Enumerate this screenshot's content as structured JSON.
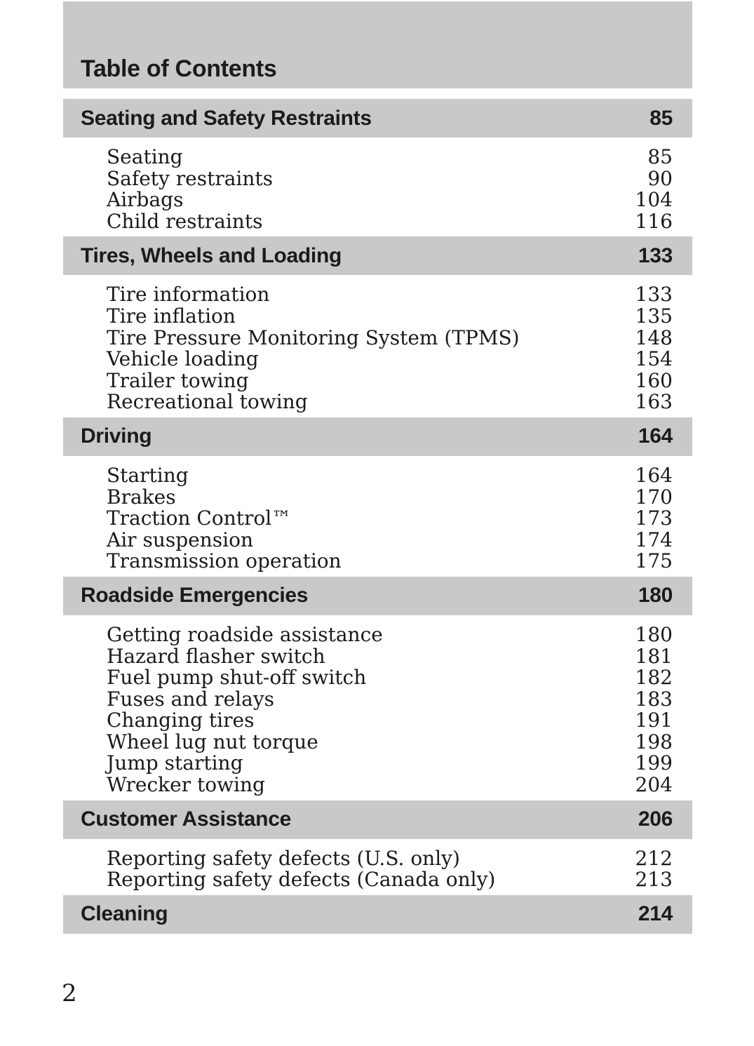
{
  "page": {
    "header_title": "Table of Contents",
    "footer_page_number": "2"
  },
  "colors": {
    "bar_background": "#c9c9c9",
    "heading_text": "#1b1b1b",
    "entry_text": "#1a1a1a",
    "page_background": "#ffffff"
  },
  "sections": [
    {
      "title": "Seating and Safety Restraints",
      "page": "85",
      "entries": [
        {
          "label": "Seating",
          "page": "85"
        },
        {
          "label": "Safety restraints",
          "page": "90"
        },
        {
          "label": "Airbags",
          "page": "104"
        },
        {
          "label": "Child restraints",
          "page": "116"
        }
      ]
    },
    {
      "title": "Tires, Wheels and Loading",
      "page": "133",
      "entries": [
        {
          "label": "Tire information",
          "page": "133"
        },
        {
          "label": "Tire inflation",
          "page": "135"
        },
        {
          "label": "Tire Pressure Monitoring System (TPMS)",
          "page": "148"
        },
        {
          "label": "Vehicle loading",
          "page": "154"
        },
        {
          "label": "Trailer towing",
          "page": "160"
        },
        {
          "label": "Recreational towing",
          "page": "163"
        }
      ]
    },
    {
      "title": "Driving",
      "page": "164",
      "entries": [
        {
          "label": "Starting",
          "page": "164"
        },
        {
          "label": "Brakes",
          "page": "170"
        },
        {
          "label": "Traction Control™",
          "page": "173"
        },
        {
          "label": "Air suspension",
          "page": "174"
        },
        {
          "label": "Transmission operation",
          "page": "175"
        }
      ]
    },
    {
      "title": "Roadside Emergencies",
      "page": "180",
      "entries": [
        {
          "label": "Getting roadside assistance",
          "page": "180"
        },
        {
          "label": "Hazard flasher switch",
          "page": "181"
        },
        {
          "label": "Fuel pump shut-off switch",
          "page": "182"
        },
        {
          "label": "Fuses and relays",
          "page": "183"
        },
        {
          "label": "Changing tires",
          "page": "191"
        },
        {
          "label": "Wheel lug nut torque",
          "page": "198"
        },
        {
          "label": "Jump starting",
          "page": "199"
        },
        {
          "label": "Wrecker towing",
          "page": "204"
        }
      ]
    },
    {
      "title": "Customer Assistance",
      "page": "206",
      "entries": [
        {
          "label": "Reporting safety defects (U.S. only)",
          "page": "212"
        },
        {
          "label": "Reporting safety defects (Canada only)",
          "page": "213"
        }
      ]
    },
    {
      "title": "Cleaning",
      "page": "214",
      "entries": []
    }
  ]
}
